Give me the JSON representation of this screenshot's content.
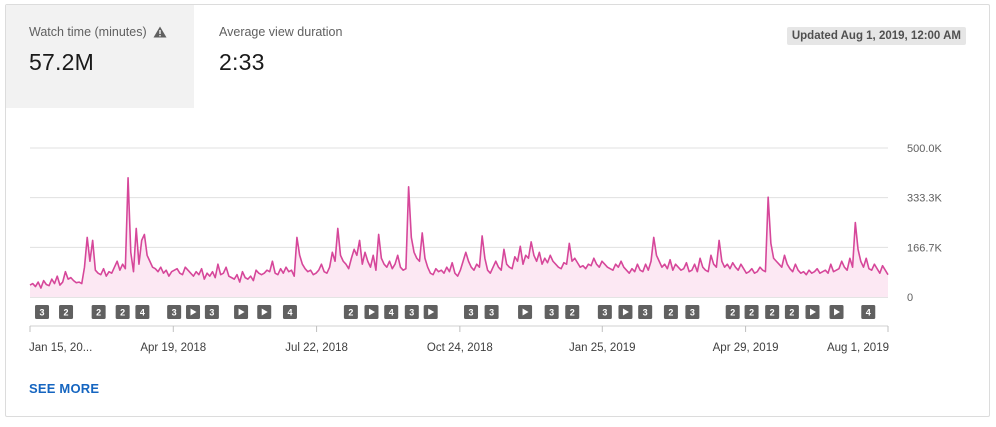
{
  "metrics": [
    {
      "label": "Watch time (minutes)",
      "value": "57.2M",
      "has_warning": true
    },
    {
      "label": "Average view duration",
      "value": "2:33"
    }
  ],
  "updated": "Updated Aug 1, 2019, 12:00 AM",
  "see_more": "SEE MORE",
  "colors": {
    "line": "#d6479a",
    "fill": "#fce8f3",
    "grid": "#e0e0e0",
    "badge": "#606060",
    "link": "#1565c0"
  },
  "chart_data": {
    "type": "area",
    "title": "",
    "xlabel": "",
    "ylabel": "",
    "ylim": [
      0,
      500000
    ],
    "y_ticks": [
      {
        "value": 500000,
        "label": "500.0K"
      },
      {
        "value": 333333,
        "label": "333.3K"
      },
      {
        "value": 166667,
        "label": "166.7K"
      },
      {
        "value": 0,
        "label": "0"
      }
    ],
    "x_ticks": [
      {
        "t": 0.0,
        "label": "Jan 15, 20..."
      },
      {
        "t": 0.167,
        "label": "Apr 19, 2018"
      },
      {
        "t": 0.334,
        "label": "Jul 22, 2018"
      },
      {
        "t": 0.501,
        "label": "Oct 24, 2018"
      },
      {
        "t": 0.667,
        "label": "Jan 25, 2019"
      },
      {
        "t": 0.834,
        "label": "Apr 29, 2019"
      },
      {
        "t": 1.0,
        "label": "Aug 1, 2019"
      }
    ],
    "series": [
      {
        "values": [
          40000,
          45000,
          35000,
          50000,
          30000,
          55000,
          42000,
          38000,
          60000,
          45000,
          70000,
          40000,
          50000,
          85000,
          60000,
          65000,
          55000,
          48000,
          50000,
          45000,
          100000,
          200000,
          120000,
          190000,
          90000,
          80000,
          75000,
          95000,
          70000,
          85000,
          80000,
          100000,
          120000,
          90000,
          110000,
          95000,
          400000,
          150000,
          85000,
          230000,
          110000,
          190000,
          210000,
          140000,
          120000,
          100000,
          95000,
          85000,
          100000,
          80000,
          90000,
          70000,
          85000,
          90000,
          95000,
          80000,
          75000,
          100000,
          90000,
          80000,
          70000,
          85000,
          75000,
          95000,
          60000,
          80000,
          70000,
          85000,
          65000,
          110000,
          75000,
          80000,
          100000,
          70000,
          65000,
          60000,
          75000,
          50000,
          85000,
          65000,
          60000,
          70000,
          55000,
          90000,
          80000,
          75000,
          80000,
          90000,
          85000,
          120000,
          80000,
          75000,
          95000,
          80000,
          100000,
          85000,
          90000,
          70000,
          200000,
          140000,
          110000,
          95000,
          85000,
          90000,
          75000,
          80000,
          90000,
          110000,
          85000,
          80000,
          100000,
          150000,
          120000,
          230000,
          140000,
          120000,
          110000,
          95000,
          130000,
          160000,
          140000,
          190000,
          110000,
          150000,
          120000,
          100000,
          140000,
          90000,
          210000,
          130000,
          110000,
          100000,
          120000,
          95000,
          110000,
          140000,
          100000,
          90000,
          95000,
          370000,
          200000,
          150000,
          130000,
          120000,
          215000,
          130000,
          100000,
          80000,
          75000,
          95000,
          85000,
          90000,
          80000,
          100000,
          85000,
          115000,
          80000,
          70000,
          90000,
          120000,
          150000,
          120000,
          100000,
          90000,
          110000,
          100000,
          205000,
          130000,
          90000,
          80000,
          100000,
          120000,
          100000,
          90000,
          160000,
          110000,
          100000,
          95000,
          135000,
          120000,
          170000,
          110000,
          140000,
          130000,
          185000,
          140000,
          120000,
          150000,
          110000,
          130000,
          115000,
          140000,
          120000,
          110000,
          100000,
          95000,
          115000,
          110000,
          180000,
          120000,
          130000,
          115000,
          100000,
          105000,
          95000,
          110000,
          105000,
          130000,
          110000,
          100000,
          120000,
          110000,
          100000,
          95000,
          90000,
          110000,
          100000,
          120000,
          100000,
          90000,
          80000,
          95000,
          85000,
          110000,
          90000,
          85000,
          110000,
          90000,
          120000,
          200000,
          140000,
          120000,
          100000,
          110000,
          95000,
          125000,
          90000,
          110000,
          100000,
          90000,
          95000,
          115000,
          85000,
          90000,
          110000,
          85000,
          130000,
          100000,
          90000,
          85000,
          140000,
          110000,
          100000,
          190000,
          120000,
          100000,
          110000,
          95000,
          115000,
          100000,
          90000,
          110000,
          95000,
          80000,
          85000,
          95000,
          80000,
          85000,
          100000,
          90000,
          85000,
          335000,
          180000,
          130000,
          120000,
          110000,
          100000,
          140000,
          110000,
          95000,
          85000,
          110000,
          90000,
          80000,
          85000,
          75000,
          90000,
          80000,
          85000,
          95000,
          80000,
          85000,
          90000,
          80000,
          110000,
          85000,
          90000,
          95000,
          120000,
          100000,
          90000,
          130000,
          100000,
          250000,
          160000,
          120000,
          100000,
          130000,
          95000,
          90000,
          110000,
          95000,
          80000,
          105000,
          90000,
          75000
        ]
      }
    ],
    "annotations": [
      {
        "t": 0.014,
        "label": "3"
      },
      {
        "t": 0.042,
        "label": "2"
      },
      {
        "t": 0.08,
        "label": "2"
      },
      {
        "t": 0.108,
        "label": "2"
      },
      {
        "t": 0.131,
        "label": "4"
      },
      {
        "t": 0.168,
        "label": "3"
      },
      {
        "t": 0.19,
        "label": "play"
      },
      {
        "t": 0.212,
        "label": "3"
      },
      {
        "t": 0.246,
        "label": "play"
      },
      {
        "t": 0.273,
        "label": "play"
      },
      {
        "t": 0.303,
        "label": "4"
      },
      {
        "t": 0.374,
        "label": "2"
      },
      {
        "t": 0.398,
        "label": "play"
      },
      {
        "t": 0.421,
        "label": "4"
      },
      {
        "t": 0.445,
        "label": "3"
      },
      {
        "t": 0.467,
        "label": "play"
      },
      {
        "t": 0.514,
        "label": "3"
      },
      {
        "t": 0.538,
        "label": "3"
      },
      {
        "t": 0.577,
        "label": "play"
      },
      {
        "t": 0.608,
        "label": "3"
      },
      {
        "t": 0.632,
        "label": "2"
      },
      {
        "t": 0.67,
        "label": "3"
      },
      {
        "t": 0.694,
        "label": "play"
      },
      {
        "t": 0.717,
        "label": "3"
      },
      {
        "t": 0.747,
        "label": "2"
      },
      {
        "t": 0.772,
        "label": "3"
      },
      {
        "t": 0.819,
        "label": "2"
      },
      {
        "t": 0.841,
        "label": "2"
      },
      {
        "t": 0.865,
        "label": "2"
      },
      {
        "t": 0.888,
        "label": "2"
      },
      {
        "t": 0.912,
        "label": "play"
      },
      {
        "t": 0.94,
        "label": "play"
      },
      {
        "t": 0.977,
        "label": "4"
      }
    ]
  }
}
